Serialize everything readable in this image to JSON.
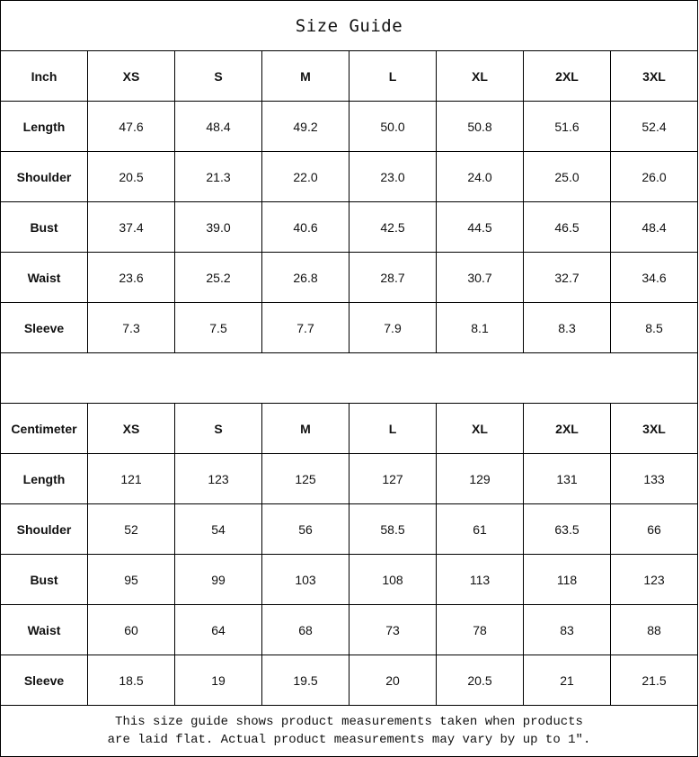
{
  "title": "Size Guide",
  "sizes": [
    "XS",
    "S",
    "M",
    "L",
    "XL",
    "2XL",
    "3XL"
  ],
  "tables": [
    {
      "unit": "Inch",
      "rows": [
        {
          "label": "Length",
          "values": [
            "47.6",
            "48.4",
            "49.2",
            "50.0",
            "50.8",
            "51.6",
            "52.4"
          ]
        },
        {
          "label": "Shoulder",
          "values": [
            "20.5",
            "21.3",
            "22.0",
            "23.0",
            "24.0",
            "25.0",
            "26.0"
          ]
        },
        {
          "label": "Bust",
          "values": [
            "37.4",
            "39.0",
            "40.6",
            "42.5",
            "44.5",
            "46.5",
            "48.4"
          ]
        },
        {
          "label": "Waist",
          "values": [
            "23.6",
            "25.2",
            "26.8",
            "28.7",
            "30.7",
            "32.7",
            "34.6"
          ]
        },
        {
          "label": "Sleeve",
          "values": [
            "7.3",
            "7.5",
            "7.7",
            "7.9",
            "8.1",
            "8.3",
            "8.5"
          ]
        }
      ]
    },
    {
      "unit": "Centimeter",
      "rows": [
        {
          "label": "Length",
          "values": [
            "121",
            "123",
            "125",
            "127",
            "129",
            "131",
            "133"
          ]
        },
        {
          "label": "Shoulder",
          "values": [
            "52",
            "54",
            "56",
            "58.5",
            "61",
            "63.5",
            "66"
          ]
        },
        {
          "label": "Bust",
          "values": [
            "95",
            "99",
            "103",
            "108",
            "113",
            "118",
            "123"
          ]
        },
        {
          "label": "Waist",
          "values": [
            "60",
            "64",
            "68",
            "73",
            "78",
            "83",
            "88"
          ]
        },
        {
          "label": "Sleeve",
          "values": [
            "18.5",
            "19",
            "19.5",
            "20",
            "20.5",
            "21",
            "21.5"
          ]
        }
      ]
    }
  ],
  "note": {
    "line1": "This size guide shows product measurements taken when products",
    "line2": "are laid flat. Actual product measurements may vary by up to 1″."
  }
}
